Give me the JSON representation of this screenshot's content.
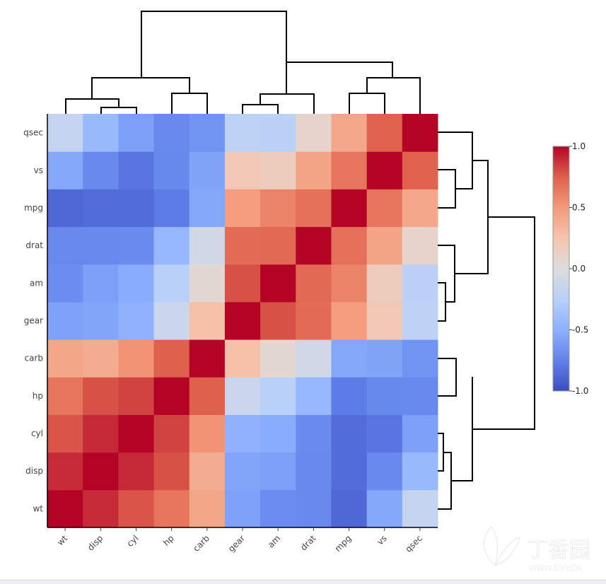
{
  "chart_data": {
    "type": "heatmap",
    "title": "",
    "x_labels": [
      "wt",
      "disp",
      "cyl",
      "hp",
      "carb",
      "gear",
      "am",
      "drat",
      "mpg",
      "vs",
      "qsec"
    ],
    "y_labels_bottom_to_top": [
      "wt",
      "disp",
      "cyl",
      "hp",
      "carb",
      "gear",
      "am",
      "drat",
      "mpg",
      "vs",
      "qsec"
    ],
    "values_rows_bottom_to_top": [
      [
        1.0,
        0.89,
        0.78,
        0.66,
        0.43,
        -0.58,
        -0.69,
        -0.71,
        -0.87,
        -0.55,
        -0.17
      ],
      [
        0.89,
        1.0,
        0.9,
        0.79,
        0.39,
        -0.56,
        -0.59,
        -0.71,
        -0.85,
        -0.71,
        -0.43
      ],
      [
        0.78,
        0.9,
        1.0,
        0.83,
        0.53,
        -0.49,
        -0.52,
        -0.7,
        -0.85,
        -0.81,
        -0.59
      ],
      [
        0.66,
        0.79,
        0.83,
        1.0,
        0.75,
        -0.13,
        -0.24,
        -0.45,
        -0.78,
        -0.72,
        -0.71
      ],
      [
        0.43,
        0.39,
        0.53,
        0.75,
        1.0,
        0.27,
        0.06,
        -0.09,
        -0.55,
        -0.57,
        -0.66
      ],
      [
        -0.58,
        -0.56,
        -0.49,
        -0.13,
        0.27,
        1.0,
        0.79,
        0.7,
        0.48,
        0.21,
        -0.21
      ],
      [
        -0.69,
        -0.59,
        -0.52,
        -0.24,
        0.06,
        0.79,
        1.0,
        0.71,
        0.6,
        0.17,
        -0.23
      ],
      [
        -0.71,
        -0.71,
        -0.7,
        -0.45,
        -0.09,
        0.7,
        0.71,
        1.0,
        0.68,
        0.44,
        0.09
      ],
      [
        -0.87,
        -0.85,
        -0.85,
        -0.78,
        -0.55,
        0.48,
        0.6,
        0.68,
        1.0,
        0.66,
        0.42
      ],
      [
        -0.55,
        -0.71,
        -0.81,
        -0.72,
        -0.57,
        0.21,
        0.17,
        0.44,
        0.66,
        1.0,
        0.74
      ],
      [
        -0.17,
        -0.43,
        -0.59,
        -0.71,
        -0.66,
        -0.21,
        -0.23,
        0.09,
        0.42,
        0.74,
        1.0
      ]
    ],
    "zlim": [
      -1,
      1
    ],
    "colorscale": "coolwarm",
    "colorscale_stops": [
      "#3b4cc0",
      "#6282ea",
      "#8db0fe",
      "#b8d0f9",
      "#dddddd",
      "#f5c4ad",
      "#f49a7b",
      "#de604d",
      "#b40426"
    ],
    "colorbar_ticks": [
      "1.0",
      "0.5",
      "0.0",
      "-0.5",
      "-1.0"
    ],
    "dendrograms": [
      "top",
      "right"
    ]
  },
  "watermark": {
    "text": "丁香园",
    "url_text": "WWW.DXY.CN"
  }
}
